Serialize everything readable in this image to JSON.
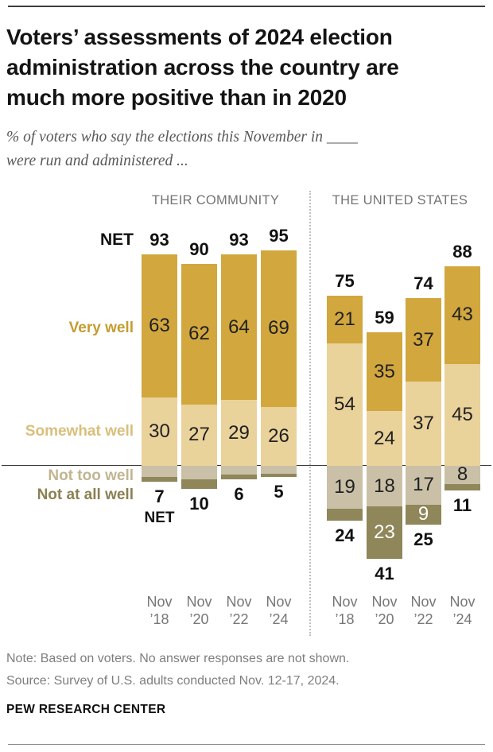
{
  "header": {
    "title_lines": [
      "Voters’ assessments of 2024 election",
      "administration across the country are",
      "much more positive than in 2020"
    ],
    "subtitle_lines": [
      "% of voters who say the elections this November in ____",
      "were run and administered ..."
    ]
  },
  "chart_data": {
    "type": "bar",
    "stacked": true,
    "units": "percent of voters",
    "orientation": "diverging: positive responses above baseline, negative below",
    "net_label": "NET",
    "legend": [
      {
        "key": "very_well",
        "label": "Very well",
        "color": "#d1a73e",
        "label_color": "#c49d31"
      },
      {
        "key": "somewhat_well",
        "label": "Somewhat well",
        "color": "#ead29b",
        "label_color": "#d9bf7b"
      },
      {
        "key": "not_too_well",
        "label": "Not too well",
        "color": "#c9c0a7",
        "label_color": "#c1b591"
      },
      {
        "key": "not_at_all_well",
        "label": "Not at all well",
        "color": "#8f8659",
        "label_color": "#8a8051"
      }
    ],
    "groups": [
      {
        "label": "THEIR COMMUNITY",
        "bars": [
          {
            "category": [
              "Nov",
              "’18"
            ],
            "net_positive": "93",
            "net_negative": "7",
            "very_well": {
              "value": 63,
              "label": "63"
            },
            "somewhat_well": {
              "value": 30,
              "label": "30"
            },
            "not_too_well": {
              "value": 5,
              "label": ""
            },
            "not_at_all_well": {
              "value": 2,
              "label": ""
            }
          },
          {
            "category": [
              "Nov",
              "’20"
            ],
            "net_positive": "90",
            "net_negative": "10",
            "very_well": {
              "value": 62,
              "label": "62"
            },
            "somewhat_well": {
              "value": 27,
              "label": "27"
            },
            "not_too_well": {
              "value": 6,
              "label": ""
            },
            "not_at_all_well": {
              "value": 4,
              "label": ""
            }
          },
          {
            "category": [
              "Nov",
              "’22"
            ],
            "net_positive": "93",
            "net_negative": "6",
            "very_well": {
              "value": 64,
              "label": "64"
            },
            "somewhat_well": {
              "value": 29,
              "label": "29"
            },
            "not_too_well": {
              "value": 4,
              "label": ""
            },
            "not_at_all_well": {
              "value": 2,
              "label": ""
            }
          },
          {
            "category": [
              "Nov",
              "’24"
            ],
            "net_positive": "95",
            "net_negative": "5",
            "very_well": {
              "value": 69,
              "label": "69"
            },
            "somewhat_well": {
              "value": 26,
              "label": "26"
            },
            "not_too_well": {
              "value": 3.5,
              "label": ""
            },
            "not_at_all_well": {
              "value": 1.5,
              "label": ""
            }
          }
        ]
      },
      {
        "label": "THE UNITED STATES",
        "bars": [
          {
            "category": [
              "Nov",
              "’18"
            ],
            "net_positive": "75",
            "net_negative": "24",
            "very_well": {
              "value": 21,
              "label": "21"
            },
            "somewhat_well": {
              "value": 54,
              "label": "54"
            },
            "not_too_well": {
              "value": 19,
              "label": "19"
            },
            "not_at_all_well": {
              "value": 5,
              "label": ""
            }
          },
          {
            "category": [
              "Nov",
              "’20"
            ],
            "net_positive": "59",
            "net_negative": "41",
            "very_well": {
              "value": 35,
              "label": "35"
            },
            "somewhat_well": {
              "value": 24,
              "label": "24"
            },
            "not_too_well": {
              "value": 18,
              "label": "18"
            },
            "not_at_all_well": {
              "value": 23,
              "label": "23",
              "label_color": "#ffffff"
            }
          },
          {
            "category": [
              "Nov",
              "’22"
            ],
            "net_positive": "74",
            "net_negative": "25",
            "very_well": {
              "value": 37,
              "label": "37"
            },
            "somewhat_well": {
              "value": 37,
              "label": "37"
            },
            "not_too_well": {
              "value": 17,
              "label": "17"
            },
            "not_at_all_well": {
              "value": 9,
              "label": "9",
              "label_color": "#ffffff"
            }
          },
          {
            "category": [
              "Nov",
              "’24"
            ],
            "net_positive": "88",
            "net_negative": "11",
            "very_well": {
              "value": 43,
              "label": "43"
            },
            "somewhat_well": {
              "value": 45,
              "label": "45"
            },
            "not_too_well": {
              "value": 8,
              "label": "8"
            },
            "not_at_all_well": {
              "value": 3,
              "label": ""
            }
          }
        ]
      }
    ]
  },
  "footer": {
    "note": "Note: Based on voters. No answer responses are not shown.",
    "source": "Source: Survey of U.S. adults conducted Nov. 12-17, 2024.",
    "brand": "PEW RESEARCH CENTER"
  }
}
